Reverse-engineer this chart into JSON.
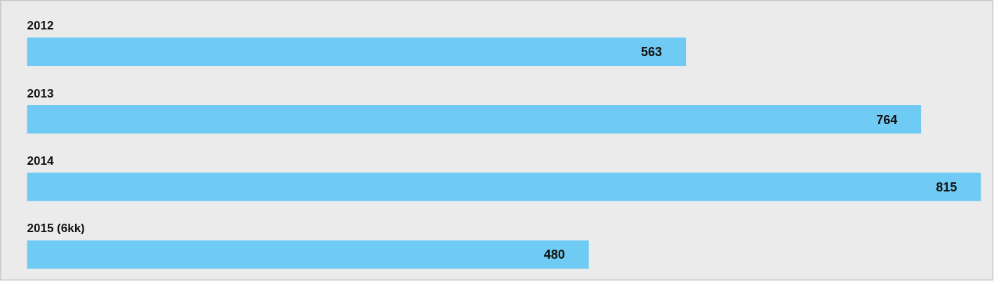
{
  "chart_data": {
    "type": "bar",
    "orientation": "horizontal",
    "categories": [
      "2012",
      "2013",
      "2014",
      "2015 (6kk)"
    ],
    "values": [
      563,
      764,
      815,
      480
    ],
    "color": "#6fcbf3",
    "data_labels": true
  }
}
